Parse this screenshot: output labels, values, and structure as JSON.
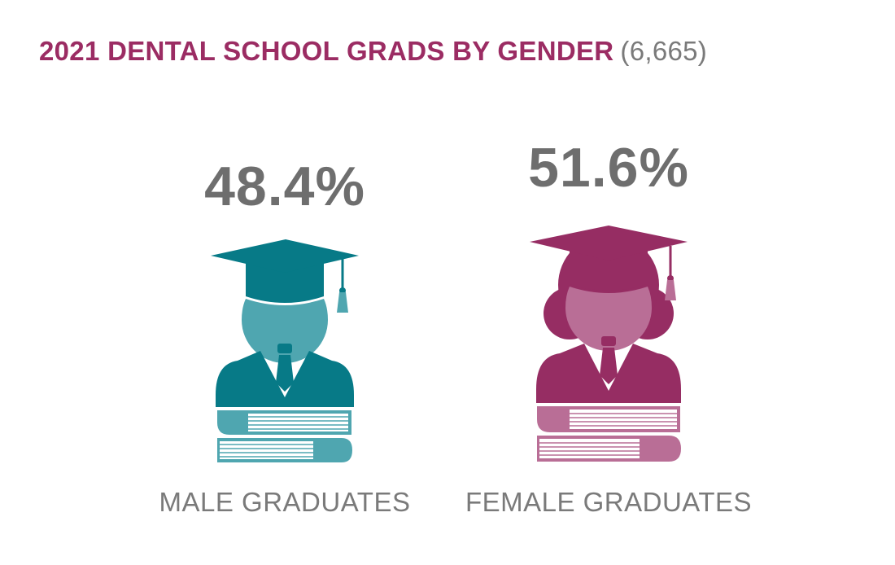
{
  "title": {
    "text": "2021 DENTAL SCHOOL GRADS BY GENDER",
    "count": "(6,665)"
  },
  "colors": {
    "title": "#9b2c63",
    "count": "#7a7a7a",
    "pct": "#6e6e6e",
    "label": "#7a7a7a",
    "male_dark": "#077a87",
    "male_light": "#4fa6b0",
    "female_dark": "#962d63",
    "female_light": "#b96e96",
    "book_lines": "#ffffff"
  },
  "chart_data": {
    "type": "pictograph",
    "title": "2021 DENTAL SCHOOL GRADS BY GENDER",
    "total": "(6,665)",
    "categories": [
      "MALE GRADUATES",
      "FEMALE GRADUATES"
    ],
    "values": [
      48.4,
      51.6
    ],
    "value_labels": [
      "48.4%",
      "51.6%"
    ],
    "unit": "%"
  }
}
